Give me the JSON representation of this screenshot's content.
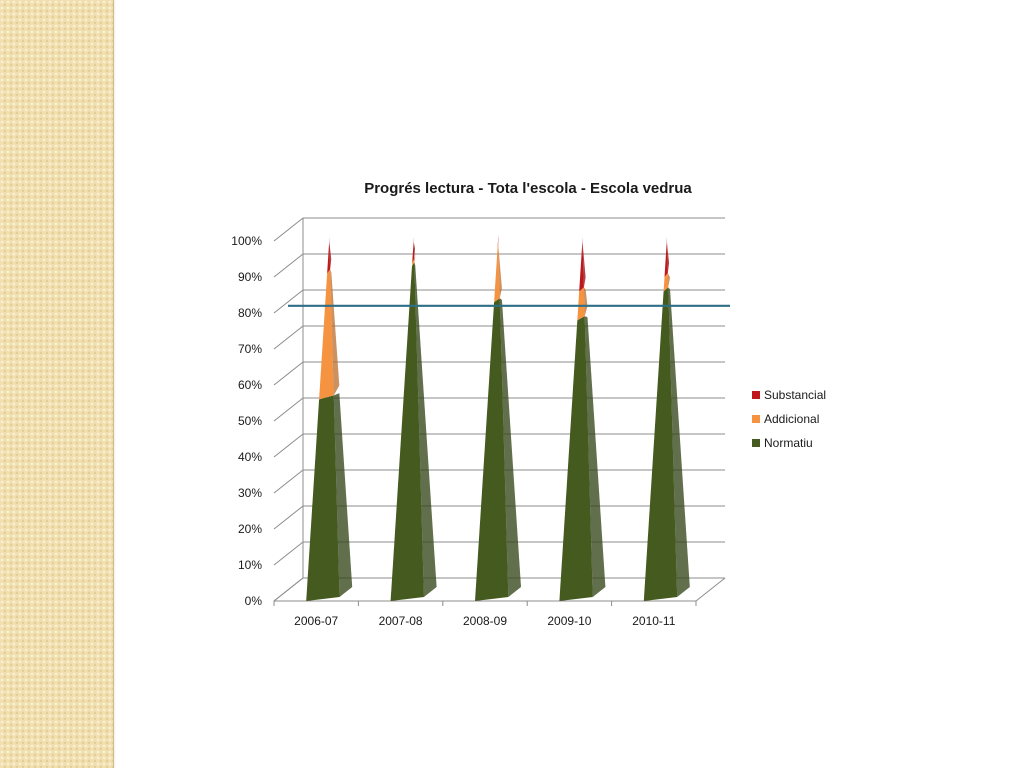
{
  "chart_data": {
    "type": "bar",
    "style": "3d-cone-stacked-100",
    "title": "Progrés lectura - Tota l'escola - Escola vedrua",
    "categories": [
      "2006-07",
      "2007-08",
      "2008-09",
      "2009-10",
      "2010-11"
    ],
    "series": [
      {
        "name": "Normatiu",
        "values": [
          56,
          93,
          83,
          78,
          86
        ],
        "color": "#445a1e"
      },
      {
        "name": "Addicional",
        "values": [
          35,
          1,
          15,
          8,
          4
        ],
        "color": "#f59341"
      },
      {
        "name": "Substancial",
        "values": [
          9,
          6,
          2,
          14,
          10
        ],
        "color": "#c0181a"
      }
    ],
    "legend_order": [
      "Substancial",
      "Addicional",
      "Normatiu"
    ],
    "y_ticks": [
      "0%",
      "10%",
      "20%",
      "30%",
      "40%",
      "50%",
      "60%",
      "70%",
      "80%",
      "90%",
      "100%"
    ],
    "ylim": [
      0,
      100
    ],
    "reference_line": {
      "value": 82,
      "color": "#2e6e86"
    },
    "grid": true,
    "legend_position": "right"
  }
}
